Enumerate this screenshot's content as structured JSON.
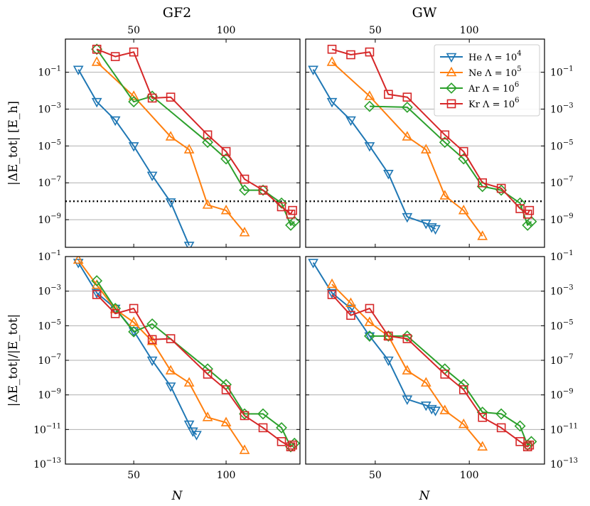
{
  "chart_data": {
    "type": "line",
    "columns": [
      {
        "title": "GF2",
        "top_ticks": [
          "50",
          "100"
        ]
      },
      {
        "title": "GW",
        "top_ticks": [
          "50",
          "100"
        ]
      }
    ],
    "rows": [
      {
        "ylabel": "|ΔE_tot| [E_h]",
        "ylim_log10": [
          -10.5,
          0.8
        ],
        "yticks": [
          {
            "base": "10",
            "exp": "−1"
          },
          {
            "base": "10",
            "exp": "−3"
          },
          {
            "base": "10",
            "exp": "−5"
          },
          {
            "base": "10",
            "exp": "−7"
          },
          {
            "base": "10",
            "exp": "−9"
          }
        ],
        "ytick_values": [
          -1,
          -3,
          -5,
          -7,
          -9
        ],
        "reference_line_log10": -8
      },
      {
        "ylabel": "|ΔE_tot|/|E_tot|",
        "ylim_log10": [
          -13,
          -1
        ],
        "yticks": [
          {
            "base": "10",
            "exp": "−1"
          },
          {
            "base": "10",
            "exp": "−3"
          },
          {
            "base": "10",
            "exp": "−5"
          },
          {
            "base": "10",
            "exp": "−7"
          },
          {
            "base": "10",
            "exp": "−9"
          },
          {
            "base": "10",
            "exp": "−11"
          },
          {
            "base": "10",
            "exp": "−13"
          }
        ],
        "ytick_values": [
          -1,
          -3,
          -5,
          -7,
          -9,
          -11,
          -13
        ],
        "reference_line_log10": null
      }
    ],
    "xlabel": "N",
    "xlim": [
      13,
      140
    ],
    "xticks": [
      "50",
      "100"
    ],
    "xtick_values": [
      50,
      100
    ],
    "legend": [
      {
        "name": "He",
        "lambda_base": "10",
        "lambda_exp": "4",
        "color": "#1f77b4",
        "marker": "triangle-down"
      },
      {
        "name": "Ne",
        "lambda_base": "10",
        "lambda_exp": "5",
        "color": "#ff7f0e",
        "marker": "triangle-up"
      },
      {
        "name": "Ar",
        "lambda_base": "10",
        "lambda_exp": "6",
        "color": "#2ca02c",
        "marker": "diamond"
      },
      {
        "name": "Kr",
        "lambda_base": "10",
        "lambda_exp": "6",
        "color": "#d62728",
        "marker": "square"
      }
    ],
    "legend_position": "top-right of GW top panel",
    "panels": [
      {
        "row": 0,
        "col": 0,
        "series": [
          {
            "x": [
              20,
              30,
              40,
              50,
              60,
              70,
              80
            ],
            "y": [
              -0.85,
              -2.6,
              -3.6,
              -5.0,
              -6.6,
              -8.05,
              -10.4
            ]
          },
          {
            "x": [
              30,
              50,
              70,
              80,
              90,
              100,
              110
            ],
            "y": [
              -0.45,
              -2.3,
              -4.5,
              -5.2,
              -8.2,
              -8.5,
              -9.7
            ]
          },
          {
            "x": [
              30,
              50,
              60,
              90,
              100,
              110,
              120,
              130,
              135,
              137
            ],
            "y": [
              0.25,
              -2.6,
              -2.3,
              -4.8,
              -5.7,
              -7.4,
              -7.4,
              -8.1,
              -9.3,
              -9.1
            ]
          },
          {
            "x": [
              30,
              40,
              50,
              60,
              70,
              90,
              100,
              110,
              120,
              130,
              135,
              136
            ],
            "y": [
              0.25,
              -0.15,
              0.1,
              -2.4,
              -2.35,
              -4.4,
              -5.3,
              -6.8,
              -7.4,
              -8.3,
              -8.7,
              -8.5
            ]
          }
        ]
      },
      {
        "row": 0,
        "col": 1,
        "series": [
          {
            "x": [
              17,
              27,
              37,
              47,
              57,
              67,
              77,
              80,
              82
            ],
            "y": [
              -0.85,
              -2.6,
              -3.6,
              -5.0,
              -6.5,
              -8.85,
              -9.2,
              -9.4,
              -9.5
            ]
          },
          {
            "x": [
              27,
              47,
              67,
              77,
              87,
              97,
              107
            ],
            "y": [
              -0.45,
              -2.3,
              -4.5,
              -5.2,
              -7.7,
              -8.5,
              -9.9
            ]
          },
          {
            "x": [
              47,
              67,
              87,
              97,
              107,
              117,
              127,
              131,
              133
            ],
            "y": [
              -2.85,
              -2.9,
              -4.8,
              -5.7,
              -7.2,
              -7.4,
              -8.1,
              -9.3,
              -9.1
            ]
          },
          {
            "x": [
              27,
              37,
              47,
              57,
              67,
              87,
              97,
              107,
              117,
              127,
              131,
              132
            ],
            "y": [
              0.25,
              -0.05,
              0.1,
              -2.2,
              -2.35,
              -4.4,
              -5.3,
              -7.0,
              -7.3,
              -8.4,
              -8.7,
              -8.5
            ]
          }
        ]
      },
      {
        "row": 1,
        "col": 0,
        "series": [
          {
            "x": [
              20,
              30,
              40,
              50,
              60,
              70,
              80,
              82,
              84
            ],
            "y": [
              -1.35,
              -3.1,
              -4.0,
              -5.3,
              -7.0,
              -8.5,
              -10.7,
              -11.1,
              -11.3
            ]
          },
          {
            "x": [
              20,
              30,
              40,
              50,
              60,
              70,
              80,
              90,
              100,
              110
            ],
            "y": [
              -1.2,
              -2.65,
              -4.05,
              -4.8,
              -5.9,
              -7.6,
              -8.3,
              -10.3,
              -10.6,
              -12.2
            ]
          },
          {
            "x": [
              30,
              40,
              50,
              60,
              90,
              100,
              110,
              120,
              130,
              135,
              137
            ],
            "y": [
              -2.4,
              -4.0,
              -5.35,
              -4.9,
              -7.5,
              -8.4,
              -10.1,
              -10.1,
              -10.9,
              -12.0,
              -11.8
            ]
          },
          {
            "x": [
              30,
              40,
              50,
              60,
              70,
              90,
              100,
              110,
              120,
              130,
              135,
              136
            ],
            "y": [
              -3.2,
              -4.3,
              -4.0,
              -5.8,
              -5.75,
              -7.8,
              -8.7,
              -10.2,
              -10.9,
              -11.7,
              -12.0,
              -11.9
            ]
          }
        ]
      },
      {
        "row": 1,
        "col": 1,
        "series": [
          {
            "x": [
              17,
              27,
              37,
              47,
              57,
              67,
              77,
              80,
              82
            ],
            "y": [
              -1.35,
              -3.1,
              -4.0,
              -5.6,
              -7.0,
              -9.25,
              -9.6,
              -9.8,
              -9.9
            ]
          },
          {
            "x": [
              27,
              37,
              47,
              57,
              67,
              77,
              87,
              97,
              107
            ],
            "y": [
              -2.6,
              -3.7,
              -4.8,
              -5.6,
              -7.6,
              -8.3,
              -9.9,
              -10.7,
              -12.0
            ]
          },
          {
            "x": [
              47,
              57,
              67,
              87,
              97,
              107,
              117,
              127,
              131,
              133
            ],
            "y": [
              -5.6,
              -5.6,
              -5.6,
              -7.5,
              -8.4,
              -10.0,
              -10.1,
              -10.8,
              -11.9,
              -11.7
            ]
          },
          {
            "x": [
              27,
              37,
              47,
              57,
              67,
              87,
              97,
              107,
              117,
              127,
              131,
              132
            ],
            "y": [
              -3.2,
              -4.4,
              -4.0,
              -5.6,
              -5.75,
              -7.8,
              -8.7,
              -10.3,
              -10.9,
              -11.7,
              -12.0,
              -11.9
            ]
          }
        ]
      }
    ]
  }
}
